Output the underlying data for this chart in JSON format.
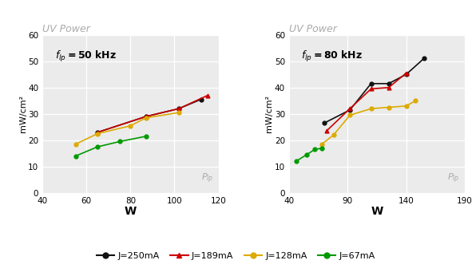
{
  "left": {
    "title": "UV Power",
    "freq": "50",
    "xlabel": "W",
    "ylabel": "mW/cm²",
    "xlim": [
      40,
      120
    ],
    "ylim": [
      0,
      60
    ],
    "xticks": [
      40,
      60,
      80,
      100,
      120
    ],
    "yticks": [
      0,
      10,
      20,
      30,
      40,
      50,
      60
    ],
    "series": {
      "J250": {
        "x": [
          65,
          87,
          102,
          112
        ],
        "y": [
          23,
          29,
          32,
          35.5
        ],
        "color": "#111111",
        "marker": "o"
      },
      "J189": {
        "x": [
          65,
          87,
          102,
          115
        ],
        "y": [
          23,
          29,
          32,
          37
        ],
        "color": "#cc0000",
        "marker": "^"
      },
      "J128": {
        "x": [
          55,
          65,
          80,
          87,
          102
        ],
        "y": [
          18.5,
          22.5,
          25.5,
          28.5,
          30.5
        ],
        "color": "#ddaa00",
        "marker": "o"
      },
      "J67": {
        "x": [
          55,
          65,
          75,
          87
        ],
        "y": [
          14,
          17.5,
          19.5,
          21.5
        ],
        "color": "#009900",
        "marker": "o"
      }
    }
  },
  "right": {
    "title": "UV Power",
    "freq": "80",
    "xlabel": "W",
    "ylabel": "mW/cm²",
    "xlim": [
      40,
      190
    ],
    "ylim": [
      0,
      60
    ],
    "xticks": [
      40,
      90,
      140,
      190
    ],
    "yticks": [
      0,
      10,
      20,
      30,
      40,
      50,
      60
    ],
    "series": {
      "J250": {
        "x": [
          70,
          92,
          110,
          125,
          140,
          155
        ],
        "y": [
          26.5,
          31.5,
          41.5,
          41.5,
          45,
          51
        ],
        "color": "#111111",
        "marker": "o"
      },
      "J189": {
        "x": [
          72,
          92,
          110,
          125,
          140
        ],
        "y": [
          23.5,
          32,
          39.5,
          40,
          45.5
        ],
        "color": "#cc0000",
        "marker": "^"
      },
      "J128": {
        "x": [
          68,
          78,
          92,
          110,
          125,
          140,
          148
        ],
        "y": [
          18.5,
          22,
          29.5,
          32,
          32.5,
          33,
          35
        ],
        "color": "#ddaa00",
        "marker": "o"
      },
      "J67": {
        "x": [
          46,
          55,
          62,
          68
        ],
        "y": [
          12,
          14.5,
          16.5,
          17
        ],
        "color": "#009900",
        "marker": "o"
      }
    }
  },
  "legend": [
    {
      "label": "J=250mA",
      "color": "#111111",
      "marker": "o"
    },
    {
      "label": "J=189mA",
      "color": "#cc0000",
      "marker": "^"
    },
    {
      "label": "J=128mA",
      "color": "#ddaa00",
      "marker": "o"
    },
    {
      "label": "J=67mA",
      "color": "#009900",
      "marker": "o"
    }
  ],
  "bg_color": "#ebebeb",
  "grid_color": "white",
  "title_color": "#aaaaaa",
  "plp_color": "#aaaaaa"
}
